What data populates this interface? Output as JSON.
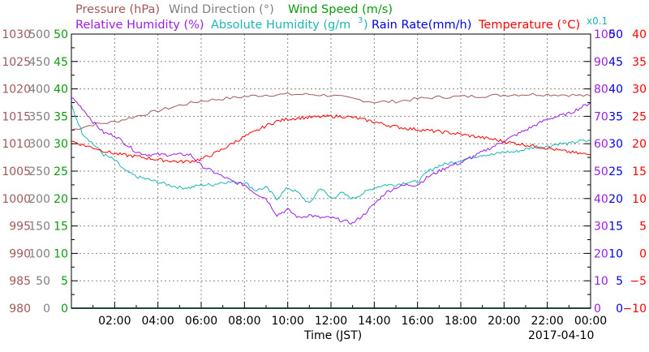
{
  "legend": {
    "line1": [
      {
        "text": "Pressure (hPa)",
        "color": "#a05a5a"
      },
      {
        "text": "Wind Direction (°)",
        "color": "#808080"
      },
      {
        "text": "Wind Speed (m/s)",
        "color": "#0a9b0a"
      }
    ],
    "line2": [
      {
        "text": "Relative Humidity (%)",
        "color": "#9a1ee6"
      },
      {
        "text": "Absolute Humidity (g/m",
        "color": "#1eb4b4"
      },
      {
        "text": "3",
        "color": "#1eb4b4"
      },
      {
        "text": ")",
        "color": "#1eb4b4"
      },
      {
        "text": "Rain Rate(mm/h)",
        "color": "#0000e6"
      },
      {
        "text": "Temperature (°C)",
        "color": "#ff0000"
      }
    ],
    "multiplier": "x0.1"
  },
  "axes": {
    "pressure": {
      "color": "#a05a5a",
      "ticks": [
        "1030",
        "1025",
        "1020",
        "1015",
        "1010",
        "1005",
        "1000",
        "995",
        "990",
        "985",
        "980"
      ]
    },
    "wind_direction": {
      "color": "#808080",
      "ticks": [
        "500",
        "450",
        "400",
        "350",
        "300",
        "250",
        "200",
        "150",
        "100",
        "50",
        "0"
      ]
    },
    "wind_speed": {
      "color": "#0a9b0a",
      "ticks": [
        "50",
        "45",
        "40",
        "35",
        "30",
        "25",
        "20",
        "15",
        "10",
        "5",
        "0"
      ]
    },
    "relative_humidity": {
      "color": "#9a1ee6",
      "ticks": [
        "100",
        "90",
        "80",
        "70",
        "60",
        "50",
        "40",
        "30",
        "20",
        "10",
        "0"
      ]
    },
    "rain_rate": {
      "color": "#0000e6",
      "ticks": [
        "50",
        "45",
        "40",
        "35",
        "30",
        "25",
        "20",
        "15",
        "10",
        "5",
        "0"
      ]
    },
    "temperature": {
      "color": "#ff0000",
      "ticks": [
        "40",
        "35",
        "30",
        "25",
        "20",
        "15",
        "10",
        "5",
        "0",
        "−5",
        "−10"
      ]
    }
  },
  "x_axis": {
    "label": "Time (JST)",
    "date": "2017-04-10",
    "ticks": [
      "02:00",
      "04:00",
      "06:00",
      "08:00",
      "10:00",
      "12:00",
      "14:00",
      "16:00",
      "18:00",
      "20:00",
      "22:00",
      "00:00"
    ]
  },
  "chart_data": {
    "type": "line",
    "x_unit": "hour (JST)",
    "xlim": [
      0,
      24
    ],
    "grid": true,
    "series": [
      {
        "name": "Pressure (hPa)",
        "color": "#a05a5a",
        "ylim": [
          980,
          1030
        ],
        "x": [
          0,
          1,
          2,
          3,
          4,
          5,
          6,
          7,
          8,
          9,
          10,
          11,
          12,
          13,
          14,
          15,
          16,
          17,
          18,
          19,
          20,
          21,
          22,
          23,
          24
        ],
        "values": [
          1012.5,
          1013.5,
          1014,
          1015,
          1016,
          1017,
          1017.8,
          1018.2,
          1018.6,
          1018.9,
          1019,
          1019,
          1018.8,
          1018.2,
          1017.6,
          1017.7,
          1018.2,
          1018.5,
          1018.6,
          1018.7,
          1018.9,
          1019,
          1019,
          1018.9,
          1018.7
        ]
      },
      {
        "name": "Absolute Humidity (g/m3)",
        "color": "#1eb4b4",
        "ylim": [
          0,
          50
        ],
        "x": [
          0,
          0.5,
          1,
          1.5,
          2,
          2.5,
          3,
          3.5,
          4,
          4.5,
          5,
          5.5,
          6,
          6.5,
          7,
          7.5,
          8,
          8.5,
          9,
          9.5,
          10,
          10.5,
          11,
          11.5,
          12,
          12.5,
          13,
          13.5,
          14,
          14.5,
          15,
          15.5,
          16,
          16.5,
          17,
          17.5,
          18,
          18.5,
          19,
          19.5,
          20,
          20.5,
          21,
          21.5,
          22,
          22.5,
          23,
          23.5,
          24
        ],
        "values": [
          37,
          32,
          30,
          28,
          27,
          25,
          24,
          23.5,
          23,
          22.5,
          22,
          22,
          22.5,
          22.5,
          23,
          23,
          23,
          21.5,
          22,
          20,
          22,
          21,
          19,
          22,
          20,
          21,
          20,
          21,
          22,
          22.5,
          22.5,
          23,
          23,
          25,
          26,
          26.5,
          27,
          27.5,
          28,
          28,
          28.5,
          28.5,
          29,
          29.5,
          29.5,
          30,
          30,
          30.5,
          30.5
        ]
      },
      {
        "name": "Relative Humidity (%)",
        "color": "#9a1ee6",
        "ylim": [
          0,
          100
        ],
        "x": [
          0,
          0.5,
          1,
          1.5,
          2,
          2.5,
          3,
          3.5,
          4,
          4.5,
          5,
          5.5,
          6,
          6.5,
          7,
          7.5,
          8,
          8.5,
          9,
          9.5,
          10,
          10.5,
          11,
          11.5,
          12,
          12.5,
          13,
          13.5,
          14,
          14.5,
          15,
          15.5,
          16,
          16.5,
          17,
          17.5,
          18,
          18.5,
          19,
          19.5,
          20,
          20.5,
          21,
          21.5,
          22,
          22.5,
          23,
          23.5,
          24
        ],
        "values": [
          77,
          73,
          68,
          64,
          63,
          60,
          57,
          56,
          56,
          56,
          56,
          56,
          52,
          50,
          48,
          46,
          45,
          42,
          40,
          34,
          36,
          33,
          34,
          33,
          33,
          32,
          31,
          34,
          38,
          42,
          44,
          45,
          45,
          48,
          50,
          52,
          53,
          55,
          57,
          59,
          61,
          63,
          65,
          67,
          69,
          70,
          71,
          73,
          75
        ]
      },
      {
        "name": "Temperature (°C)",
        "color": "#ff0000",
        "ylim": [
          -10,
          40
        ],
        "x": [
          0,
          0.5,
          1,
          1.5,
          2,
          2.5,
          3,
          3.5,
          4,
          4.5,
          5,
          5.5,
          6,
          6.5,
          7,
          7.5,
          8,
          8.5,
          9,
          9.5,
          10,
          10.5,
          11,
          11.5,
          12,
          12.5,
          13,
          13.5,
          14,
          14.5,
          15,
          15.5,
          16,
          16.5,
          17,
          17.5,
          18,
          18.5,
          19,
          19.5,
          20,
          20.5,
          21,
          21.5,
          22,
          22.5,
          23,
          23.5,
          24
        ],
        "values": [
          20.5,
          19.8,
          19.3,
          18.7,
          18.2,
          17.9,
          17.7,
          17.4,
          17.1,
          16.9,
          16.7,
          16.8,
          17.2,
          18,
          19,
          20.2,
          21.3,
          22.2,
          23.3,
          24.1,
          24.5,
          24.7,
          24.8,
          24.9,
          25,
          25,
          24.8,
          24.4,
          24,
          23.5,
          23.1,
          22.8,
          22.6,
          22.4,
          22.2,
          22,
          21.7,
          21.4,
          21.1,
          20.8,
          20.4,
          20.1,
          19.8,
          19.5,
          19.2,
          18.8,
          18.5,
          18.2,
          18
        ]
      },
      {
        "name": "Rain Rate (mm/h)",
        "color": "#0000e6",
        "ylim": [
          0,
          50
        ],
        "x": [
          0,
          24
        ],
        "values": [
          0,
          0
        ]
      },
      {
        "name": "Wind Speed (m/s)",
        "color": "#0a9b0a",
        "ylim": [
          0,
          50
        ],
        "x": [
          0,
          24
        ],
        "values": [
          0,
          0
        ]
      }
    ]
  }
}
